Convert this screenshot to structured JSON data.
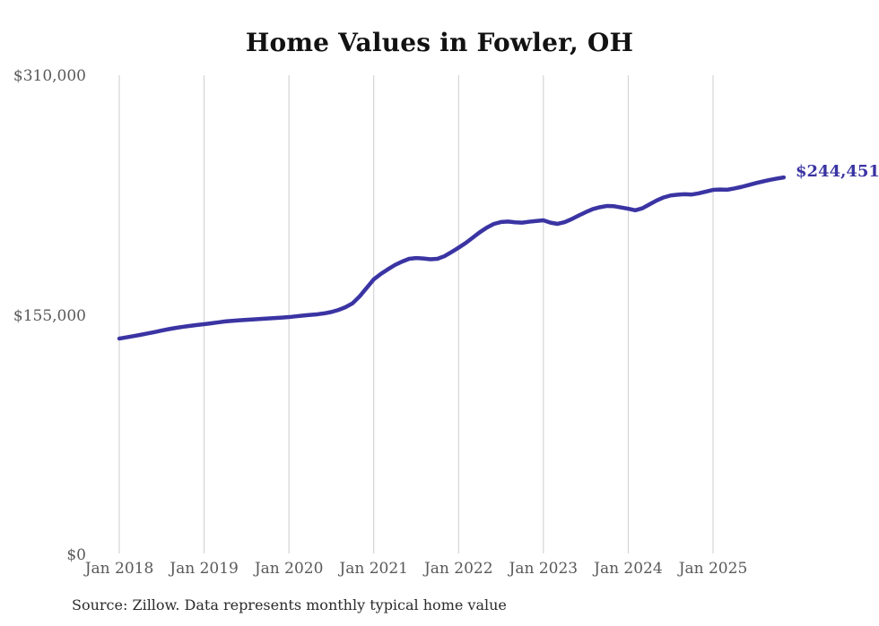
{
  "chart_data": {
    "type": "line",
    "title": "Home Values in Fowler, OH",
    "xlabel": "",
    "ylabel": "",
    "ylim": [
      0,
      310000
    ],
    "grid": "vertical-only",
    "legend": "none",
    "x_monthly_start": "2018-01",
    "x_monthly_end": "2025-11",
    "x_tick_labels": [
      "Jan 2018",
      "Jan 2019",
      "Jan 2020",
      "Jan 2021",
      "Jan 2022",
      "Jan 2023",
      "Jan 2024",
      "Jan 2025"
    ],
    "y_ticks": [
      {
        "label": "$0",
        "value": 0
      },
      {
        "label": "$155,000",
        "value": 155000
      },
      {
        "label": "$310,000",
        "value": 310000
      }
    ],
    "series": [
      {
        "name": "Monthly typical home value",
        "values": [
          140200,
          141000,
          141800,
          142600,
          143500,
          144400,
          145400,
          146300,
          147100,
          147800,
          148400,
          149000,
          149500,
          150100,
          150700,
          151300,
          151700,
          152000,
          152300,
          152600,
          152900,
          153200,
          153500,
          153800,
          154100,
          154600,
          155100,
          155500,
          155900,
          156500,
          157400,
          158700,
          160500,
          163000,
          167500,
          173000,
          178500,
          182000,
          185000,
          187800,
          190000,
          191800,
          192300,
          192000,
          191500,
          191800,
          193500,
          196200,
          199000,
          202000,
          205500,
          209000,
          212000,
          214400,
          215600,
          215900,
          215400,
          215200,
          215800,
          216300,
          216700,
          215200,
          214400,
          215500,
          217500,
          219800,
          222000,
          224000,
          225200,
          226000,
          225800,
          225000,
          224200,
          223200,
          224500,
          227000,
          229500,
          231500,
          232800,
          233300,
          233600,
          233400,
          234200,
          235300,
          236400,
          236600,
          236500,
          237300,
          238300,
          239500,
          240700,
          241800,
          242800,
          243700,
          244451
        ]
      }
    ],
    "latest_value": 244451,
    "end_label": "$244,451",
    "source_note": "Source: Zillow. Data represents monthly typical home value",
    "colors": {
      "line": "#3a34a3",
      "grid": "#cccccc",
      "tick_label": "#595959",
      "title": "#121212",
      "source": "#2b2b2b",
      "background": "#ffffff"
    }
  }
}
